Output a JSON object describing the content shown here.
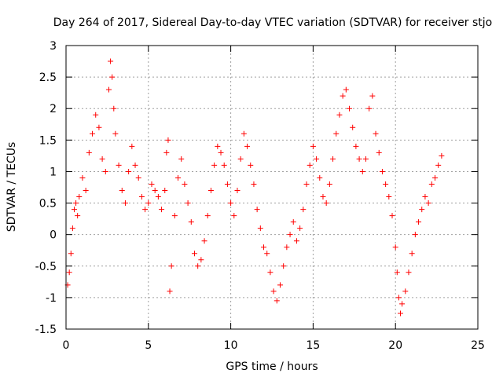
{
  "chart_data": {
    "type": "scatter",
    "title": "Day 264 of 2017, Sidereal Day-to-day VTEC variation (SDTVAR) for receiver stjo",
    "xlabel": "GPS time / hours",
    "ylabel": "SDTVAR / TECUs",
    "xlim": [
      0,
      25
    ],
    "ylim": [
      -1.5,
      3
    ],
    "xticks": [
      0,
      5,
      10,
      15,
      20,
      25
    ],
    "yticks": [
      -1.5,
      -1,
      -0.5,
      0,
      0.5,
      1,
      1.5,
      2,
      2.5,
      3
    ],
    "xtick_labels": [
      "0",
      "5",
      "10",
      "15",
      "20",
      "25"
    ],
    "ytick_labels": [
      "-1.5",
      "-1",
      "-0.5",
      "0",
      "0.5",
      "1",
      "1.5",
      "2",
      "2.5",
      "3"
    ],
    "grid": true,
    "marker": "+",
    "color": "#ff0000",
    "series": [
      {
        "name": "SDTVAR",
        "x": [
          0.1,
          0.2,
          0.3,
          0.4,
          0.5,
          0.6,
          0.7,
          0.8,
          1.0,
          1.2,
          1.4,
          1.6,
          1.8,
          2.0,
          2.2,
          2.4,
          2.6,
          2.7,
          2.8,
          2.9,
          3.0,
          3.2,
          3.4,
          3.6,
          3.8,
          4.0,
          4.2,
          4.4,
          4.6,
          4.8,
          5.0,
          5.2,
          5.4,
          5.6,
          5.8,
          6.0,
          6.1,
          6.2,
          6.3,
          6.4,
          6.6,
          6.8,
          7.0,
          7.2,
          7.4,
          7.6,
          7.8,
          8.0,
          8.2,
          8.4,
          8.6,
          8.8,
          9.0,
          9.2,
          9.4,
          9.6,
          9.8,
          10.0,
          10.2,
          10.4,
          10.6,
          10.8,
          11.0,
          11.2,
          11.4,
          11.6,
          11.8,
          12.0,
          12.2,
          12.4,
          12.6,
          12.8,
          13.0,
          13.2,
          13.4,
          13.6,
          13.8,
          14.0,
          14.2,
          14.4,
          14.6,
          14.8,
          15.0,
          15.2,
          15.4,
          15.6,
          15.8,
          16.0,
          16.2,
          16.4,
          16.6,
          16.8,
          17.0,
          17.2,
          17.4,
          17.6,
          17.8,
          18.0,
          18.2,
          18.4,
          18.6,
          18.8,
          19.0,
          19.2,
          19.4,
          19.6,
          19.8,
          20.0,
          20.1,
          20.2,
          20.3,
          20.4,
          20.6,
          20.8,
          21.0,
          21.2,
          21.4,
          21.6,
          21.8,
          22.0,
          22.2,
          22.4,
          22.6,
          22.8
        ],
        "y": [
          -0.8,
          -0.6,
          -0.3,
          0.1,
          0.4,
          0.5,
          0.3,
          0.6,
          0.9,
          0.7,
          1.3,
          1.6,
          1.9,
          1.7,
          1.2,
          1.0,
          2.3,
          2.75,
          2.5,
          2.0,
          1.6,
          1.1,
          0.7,
          0.5,
          1.0,
          1.4,
          1.1,
          0.9,
          0.6,
          0.4,
          0.5,
          0.8,
          0.7,
          0.6,
          0.4,
          0.7,
          1.3,
          1.5,
          -0.9,
          -0.5,
          0.3,
          0.9,
          1.2,
          0.8,
          0.5,
          0.2,
          -0.3,
          -0.5,
          -0.4,
          -0.1,
          0.3,
          0.7,
          1.1,
          1.4,
          1.3,
          1.1,
          0.8,
          0.5,
          0.3,
          0.7,
          1.2,
          1.6,
          1.4,
          1.1,
          0.8,
          0.4,
          0.1,
          -0.2,
          -0.3,
          -0.6,
          -0.9,
          -1.05,
          -0.8,
          -0.5,
          -0.2,
          0.0,
          0.2,
          -0.1,
          0.1,
          0.4,
          0.8,
          1.1,
          1.4,
          1.2,
          0.9,
          0.6,
          0.5,
          0.8,
          1.2,
          1.6,
          1.9,
          2.2,
          2.3,
          2.0,
          1.7,
          1.4,
          1.2,
          1.0,
          1.2,
          2.0,
          2.2,
          1.6,
          1.3,
          1.0,
          0.8,
          0.6,
          0.3,
          -0.2,
          -0.6,
          -1.0,
          -1.25,
          -1.1,
          -0.9,
          -0.6,
          -0.3,
          0.0,
          0.2,
          0.4,
          0.6,
          0.5,
          0.8,
          0.9,
          1.1,
          1.25
        ]
      }
    ]
  }
}
